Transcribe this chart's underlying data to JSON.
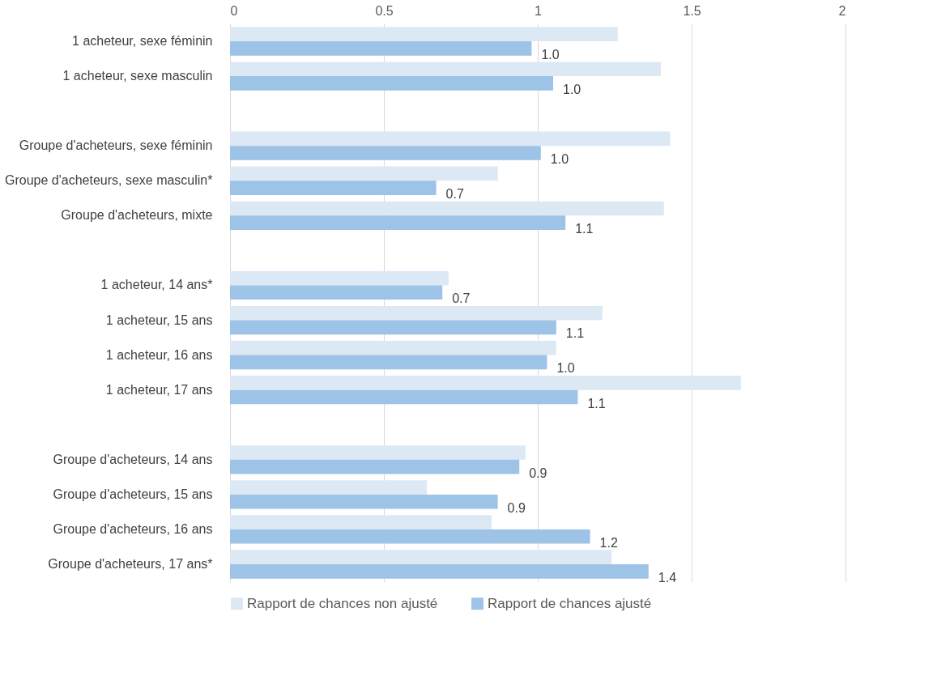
{
  "chart_data": {
    "type": "bar",
    "orientation": "horizontal",
    "categories": [
      "1 acheteur, sexe féminin",
      "1 acheteur, sexe masculin",
      null,
      "Groupe d'acheteurs, sexe féminin",
      "Groupe d'acheteurs, sexe masculin*",
      "Groupe d'acheteurs, mixte",
      null,
      "1 acheteur, 14 ans*",
      "1 acheteur, 15 ans",
      "1 acheteur, 16 ans",
      "1 acheteur, 17 ans",
      null,
      "Groupe d'acheteurs, 14 ans",
      "Groupe d'acheteurs, 15 ans",
      "Groupe d'acheteurs, 16 ans",
      "Groupe d'acheteurs, 17 ans*"
    ],
    "series": [
      {
        "name": "Rapport de chances non ajusté",
        "color": "#dde8f5",
        "values": [
          1.26,
          1.4,
          null,
          1.43,
          0.87,
          1.41,
          null,
          0.71,
          1.21,
          1.06,
          1.66,
          null,
          0.96,
          0.64,
          0.85,
          1.24
        ]
      },
      {
        "name": "Rapport de chances ajusté",
        "color": "#9dc3e6",
        "values": [
          0.98,
          1.05,
          null,
          1.01,
          0.67,
          1.09,
          null,
          0.69,
          1.06,
          1.03,
          1.13,
          null,
          0.94,
          0.87,
          1.17,
          1.36
        ],
        "value_labels": [
          "1.0",
          "1.0",
          null,
          "1.0",
          "0.7",
          "1.1",
          null,
          "0.7",
          "1.1",
          "1.0",
          "1.1",
          null,
          "0.9",
          "0.9",
          "1.2",
          "1.4"
        ]
      }
    ],
    "xlim": [
      0,
      2
    ],
    "xticks": [
      0,
      0.5,
      1,
      1.5,
      2
    ],
    "grid": "x",
    "legend": "bottom"
  }
}
